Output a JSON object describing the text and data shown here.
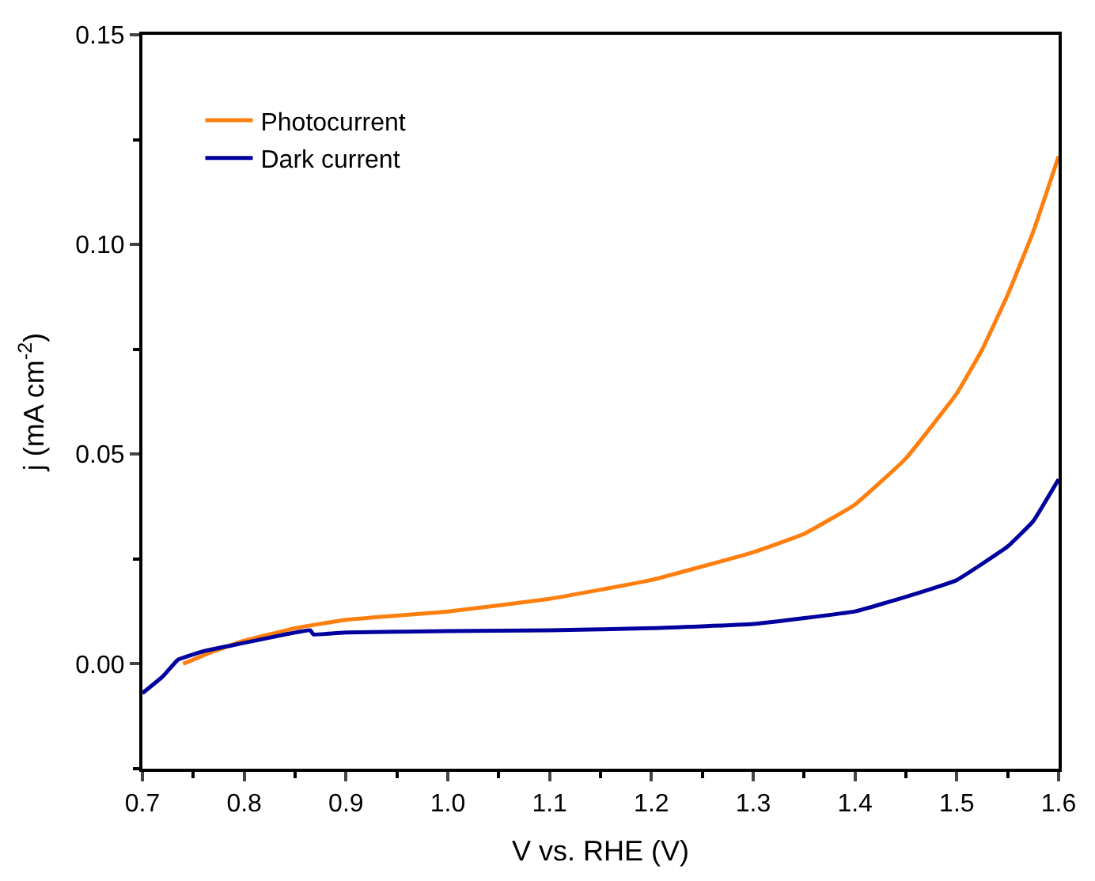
{
  "chart_data": {
    "type": "line",
    "xlabel": "V vs. RHE (V)",
    "ylabel": "j (mA cm$^{-2}$)",
    "xlim": [
      0.7,
      1.6
    ],
    "xticks": [
      {
        "value": 0.7,
        "label": "0.7"
      },
      {
        "value": 0.8,
        "label": "0.8"
      },
      {
        "value": 0.9,
        "label": "0.9"
      },
      {
        "value": 1.0,
        "label": "1.0"
      },
      {
        "value": 1.1,
        "label": "1.1"
      },
      {
        "value": 1.2,
        "label": "1.2"
      },
      {
        "value": 1.3,
        "label": "1.3"
      },
      {
        "value": 1.4,
        "label": "1.4"
      },
      {
        "value": 1.5,
        "label": "1.5"
      },
      {
        "value": 1.6,
        "label": "1.6"
      }
    ],
    "ylim": [
      -0.025,
      0.15
    ],
    "yticks": [
      {
        "value": 0.0,
        "label": "0.00"
      },
      {
        "value": 0.05,
        "label": "0.05"
      },
      {
        "value": 0.1,
        "label": "0.10"
      },
      {
        "value": 0.15,
        "label": "0.15"
      }
    ],
    "legend": "top left",
    "line_style": "solid",
    "marker": "none",
    "series": [
      {
        "name": "Photocurrent",
        "color": "#ff7f0e",
        "x": [
          0.74,
          0.77,
          0.8,
          0.85,
          0.9,
          1.0,
          1.1,
          1.2,
          1.3,
          1.35,
          1.4,
          1.45,
          1.5,
          1.525,
          1.55,
          1.575,
          1.6
        ],
        "values": [
          0.0,
          0.003,
          0.0055,
          0.0085,
          0.0105,
          0.0125,
          0.0155,
          0.02,
          0.0266,
          0.031,
          0.038,
          0.049,
          0.0645,
          0.075,
          0.088,
          0.103,
          0.121
        ]
      },
      {
        "name": "Dark current",
        "color": "#00009f",
        "x": [
          0.7,
          0.72,
          0.735,
          0.76,
          0.8,
          0.84,
          0.865,
          0.868,
          0.9,
          1.0,
          1.1,
          1.2,
          1.3,
          1.4,
          1.45,
          1.5,
          1.55,
          1.575,
          1.6
        ],
        "values": [
          -0.007,
          -0.003,
          0.001,
          0.003,
          0.005,
          0.007,
          0.008,
          0.007,
          0.0075,
          0.0078,
          0.008,
          0.0085,
          0.0095,
          0.0125,
          0.016,
          0.02,
          0.028,
          0.034,
          0.044
        ]
      }
    ]
  }
}
